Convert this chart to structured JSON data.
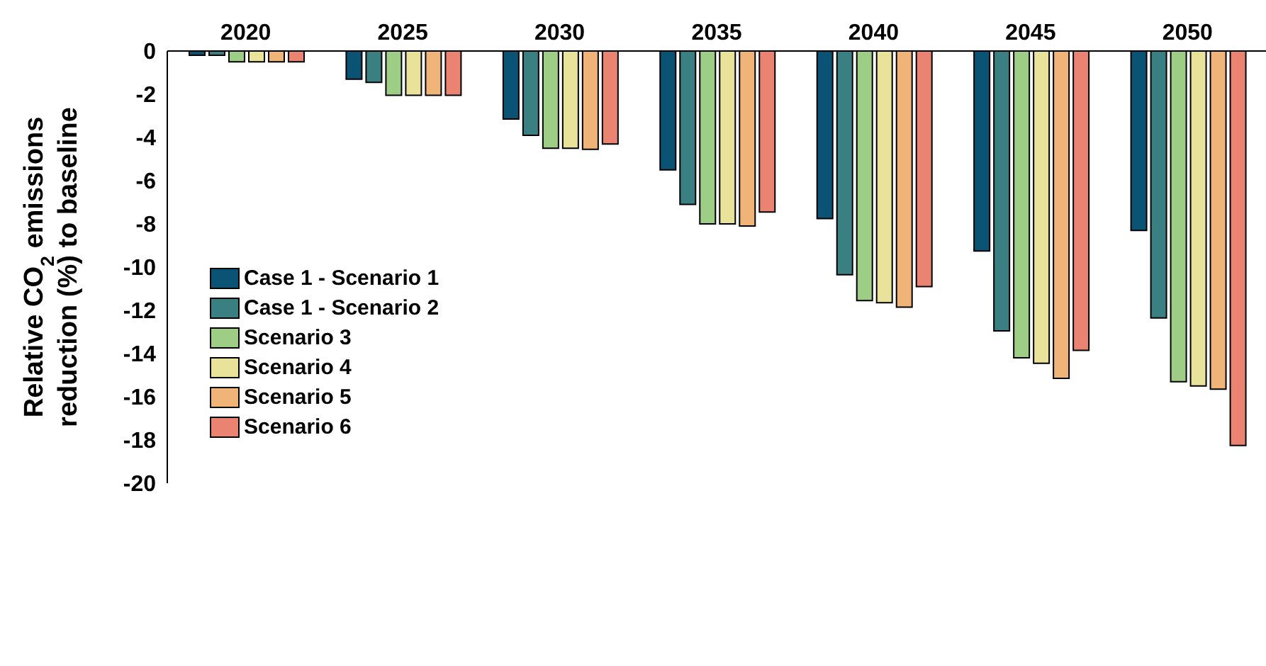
{
  "chart_data": {
    "type": "bar",
    "ylabel": "Relative CO$_{2}$ emissions reduction (%) to baseline",
    "categories": [
      "2020",
      "2025",
      "2030",
      "2035",
      "2040",
      "2045",
      "2050"
    ],
    "series": [
      {
        "name": "Case 1 - Scenario 1",
        "color": "#0b5374",
        "values": [
          -0.2,
          -1.3,
          -3.15,
          -5.5,
          -7.75,
          -9.25,
          -8.3
        ]
      },
      {
        "name": "Case 1 - Scenario 2",
        "color": "#3a8082",
        "values": [
          -0.2,
          -1.45,
          -3.9,
          -7.1,
          -10.35,
          -12.95,
          -12.35
        ]
      },
      {
        "name": "Scenario 3",
        "color": "#9ecd85",
        "values": [
          -0.5,
          -2.05,
          -4.5,
          -8.0,
          -11.55,
          -14.2,
          -15.3
        ]
      },
      {
        "name": "Scenario 4",
        "color": "#e9e29b",
        "values": [
          -0.5,
          -2.05,
          -4.5,
          -8.0,
          -11.65,
          -14.45,
          -15.5
        ]
      },
      {
        "name": "Scenario 5",
        "color": "#f0b478",
        "values": [
          -0.5,
          -2.05,
          -4.55,
          -8.1,
          -11.85,
          -15.15,
          -15.65
        ]
      },
      {
        "name": "Scenario 6",
        "color": "#ea8372",
        "values": [
          -0.5,
          -2.05,
          -4.3,
          -7.45,
          -10.9,
          -13.85,
          -18.25
        ]
      }
    ],
    "ylim": [
      -20,
      0
    ],
    "yticks": [
      0,
      -2,
      -4,
      -6,
      -8,
      -10,
      -12,
      -14,
      -16,
      -18,
      -20
    ],
    "grid": false,
    "legend": "left"
  }
}
